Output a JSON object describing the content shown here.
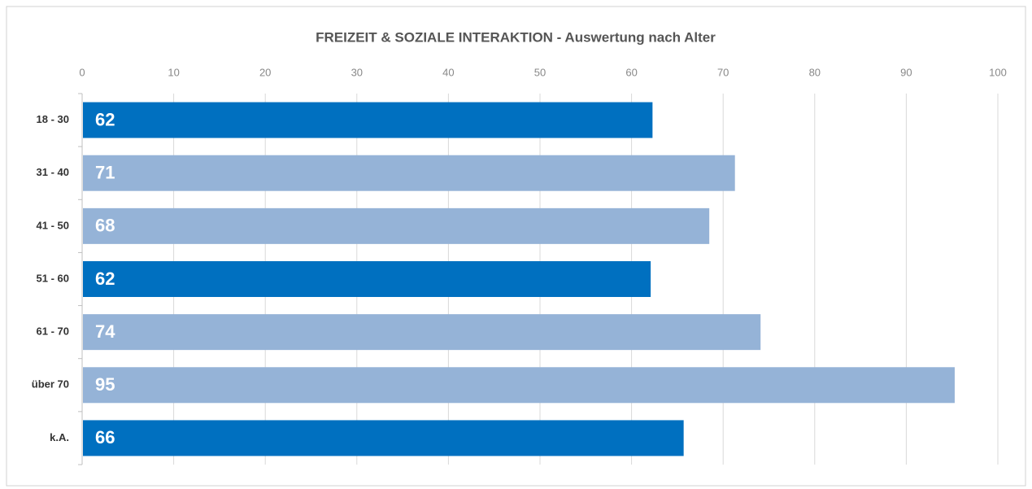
{
  "chart_data": {
    "type": "hbar",
    "title": "FREIZEIT & SOZIALE INTERAKTION - Auswertung nach Alter",
    "categories": [
      "18 - 30",
      "31 - 40",
      "41 - 50",
      "51 - 60",
      "61 - 70",
      "über 70",
      "k.A."
    ],
    "values": [
      62.2,
      71.2,
      68.4,
      62,
      74,
      95.2,
      65.6
    ],
    "value_labels": [
      "62",
      "71",
      "68",
      "62",
      "74",
      "95",
      "66"
    ],
    "colors": [
      "#0070c0",
      "#95b3d7",
      "#95b3d7",
      "#0070c0",
      "#95b3d7",
      "#95b3d7",
      "#0070c0"
    ],
    "xlim": [
      0,
      100
    ],
    "xticks": [
      0,
      10,
      20,
      30,
      40,
      50,
      60,
      70,
      80,
      90,
      100
    ],
    "grid": true
  }
}
